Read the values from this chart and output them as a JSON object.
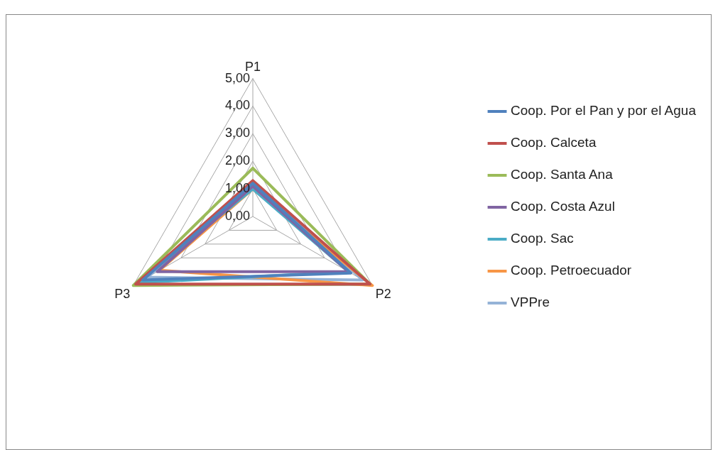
{
  "chart_data": {
    "type": "radar",
    "categories": [
      "P1",
      "P2",
      "P3"
    ],
    "ylim": [
      0,
      5
    ],
    "yticks": [
      {
        "value": 0,
        "label": "0,00"
      },
      {
        "value": 1,
        "label": "1,00"
      },
      {
        "value": 2,
        "label": "2,00"
      },
      {
        "value": 3,
        "label": "3,00"
      },
      {
        "value": 4,
        "label": "4,00"
      },
      {
        "value": 5,
        "label": "5,00"
      }
    ],
    "grid": true,
    "legend": "right",
    "marker": "none",
    "line_style": "solid",
    "series": [
      {
        "name": "Coop. Por el Pan y por el Agua",
        "color": "#4f81bd",
        "values": [
          1.2,
          4.1,
          4.6
        ]
      },
      {
        "name": "Coop. Calceta",
        "color": "#c0504d",
        "values": [
          1.3,
          4.9,
          4.9
        ]
      },
      {
        "name": "Coop. Santa Ana",
        "color": "#9bbb59",
        "values": [
          1.75,
          4.9,
          5.0
        ]
      },
      {
        "name": "Coop. Costa Azul",
        "color": "#8064a2",
        "values": [
          1.1,
          4.0,
          4.0
        ]
      },
      {
        "name": "Coop. Sac",
        "color": "#4bacc6",
        "values": [
          1.0,
          4.0,
          4.8
        ]
      },
      {
        "name": "Coop. Petroecuador",
        "color": "#f79646",
        "values": [
          1.0,
          5.0,
          3.9
        ]
      },
      {
        "name": "VPPre",
        "color": "#95b3d7",
        "values": [
          1.2,
          4.6,
          4.4
        ]
      }
    ]
  }
}
